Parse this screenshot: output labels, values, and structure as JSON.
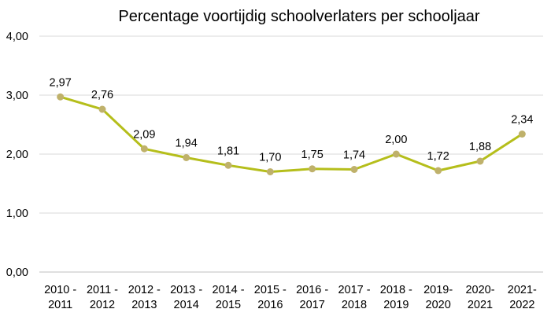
{
  "chart_data": {
    "type": "line",
    "title": "Percentage voortijdig schoolverlaters per schooljaar",
    "xlabel": "",
    "ylabel": "",
    "categories": [
      [
        "2010 -",
        "2011"
      ],
      [
        "2011 -",
        "2012"
      ],
      [
        "2012 -",
        "2013"
      ],
      [
        "2013 -",
        "2014"
      ],
      [
        "2014 -",
        "2015"
      ],
      [
        "2015 -",
        "2016"
      ],
      [
        "2016 -",
        "2017"
      ],
      [
        "2017 -",
        "2018"
      ],
      [
        "2018 -",
        "2019"
      ],
      [
        "2019-",
        "2020"
      ],
      [
        "2020-",
        "2021"
      ],
      [
        "2021-",
        "2022"
      ]
    ],
    "values": [
      2.97,
      2.76,
      2.09,
      1.94,
      1.81,
      1.7,
      1.75,
      1.74,
      2.0,
      1.72,
      1.88,
      2.34
    ],
    "data_labels": [
      "2,97",
      "2,76",
      "2,09",
      "1,94",
      "1,81",
      "1,70",
      "1,75",
      "1,74",
      "2,00",
      "1,72",
      "1,88",
      "2,34"
    ],
    "yticks": [
      0,
      1,
      2,
      3,
      4
    ],
    "ytick_labels": [
      "0,00",
      "1,00",
      "2,00",
      "3,00",
      "4,00"
    ],
    "ylim": [
      0,
      4
    ],
    "grid": true,
    "legend": "none",
    "line_color": "#b5be1b",
    "marker_color": "#bfb16b"
  }
}
